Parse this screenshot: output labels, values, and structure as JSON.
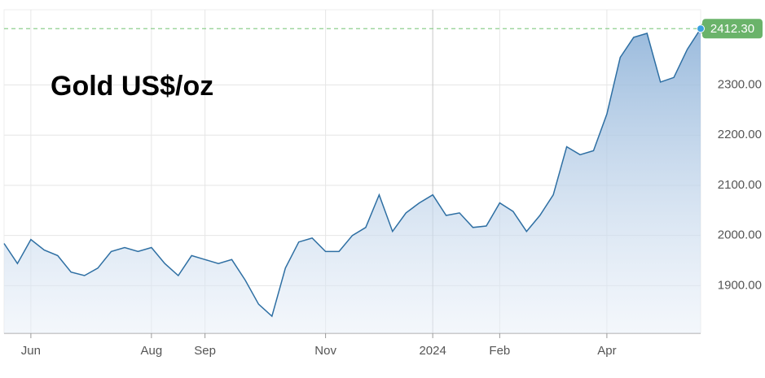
{
  "chart_data": {
    "type": "area-line",
    "title": "Gold US$/oz",
    "categories": [
      null,
      null,
      "Jun",
      null,
      null,
      null,
      null,
      null,
      null,
      null,
      null,
      "Aug",
      null,
      null,
      null,
      "Sep",
      null,
      null,
      null,
      null,
      null,
      null,
      null,
      null,
      "Nov",
      null,
      null,
      null,
      null,
      null,
      null,
      null,
      "2024",
      null,
      null,
      null,
      null,
      "Feb",
      null,
      null,
      null,
      null,
      null,
      null,
      null,
      "Apr",
      null,
      null,
      null,
      null,
      null,
      null,
      null
    ],
    "series": [
      {
        "color": "#2e6fa3",
        "values": [
          1984,
          1944,
          1992,
          1971,
          1960,
          1927,
          1920,
          1935,
          1968,
          1976,
          1968,
          1976,
          1944,
          1920,
          1960,
          1952,
          1944,
          1952,
          1911,
          1863,
          1839,
          1935,
          1987,
          1995,
          1968,
          1968,
          2000,
          2016,
          2081,
          2008,
          2045,
          2065,
          2081,
          2040,
          2045,
          2016,
          2019,
          2065,
          2048,
          2008,
          2040,
          2081,
          2177,
          2161,
          2169,
          2242,
          2355,
          2395,
          2403,
          2306,
          2315,
          2371,
          2412.3
        ],
        "last_label": "2412.30"
      }
    ],
    "ylim": [
      1805,
      2450
    ],
    "yticks": [
      {
        "value": 1900,
        "label": "1900.00"
      },
      {
        "value": 2000,
        "label": "2000.00"
      },
      {
        "value": 2100,
        "label": "2100.00"
      },
      {
        "value": 2200,
        "label": "2200.00"
      },
      {
        "value": 2300,
        "label": "2300.00"
      }
    ],
    "grid": true
  }
}
